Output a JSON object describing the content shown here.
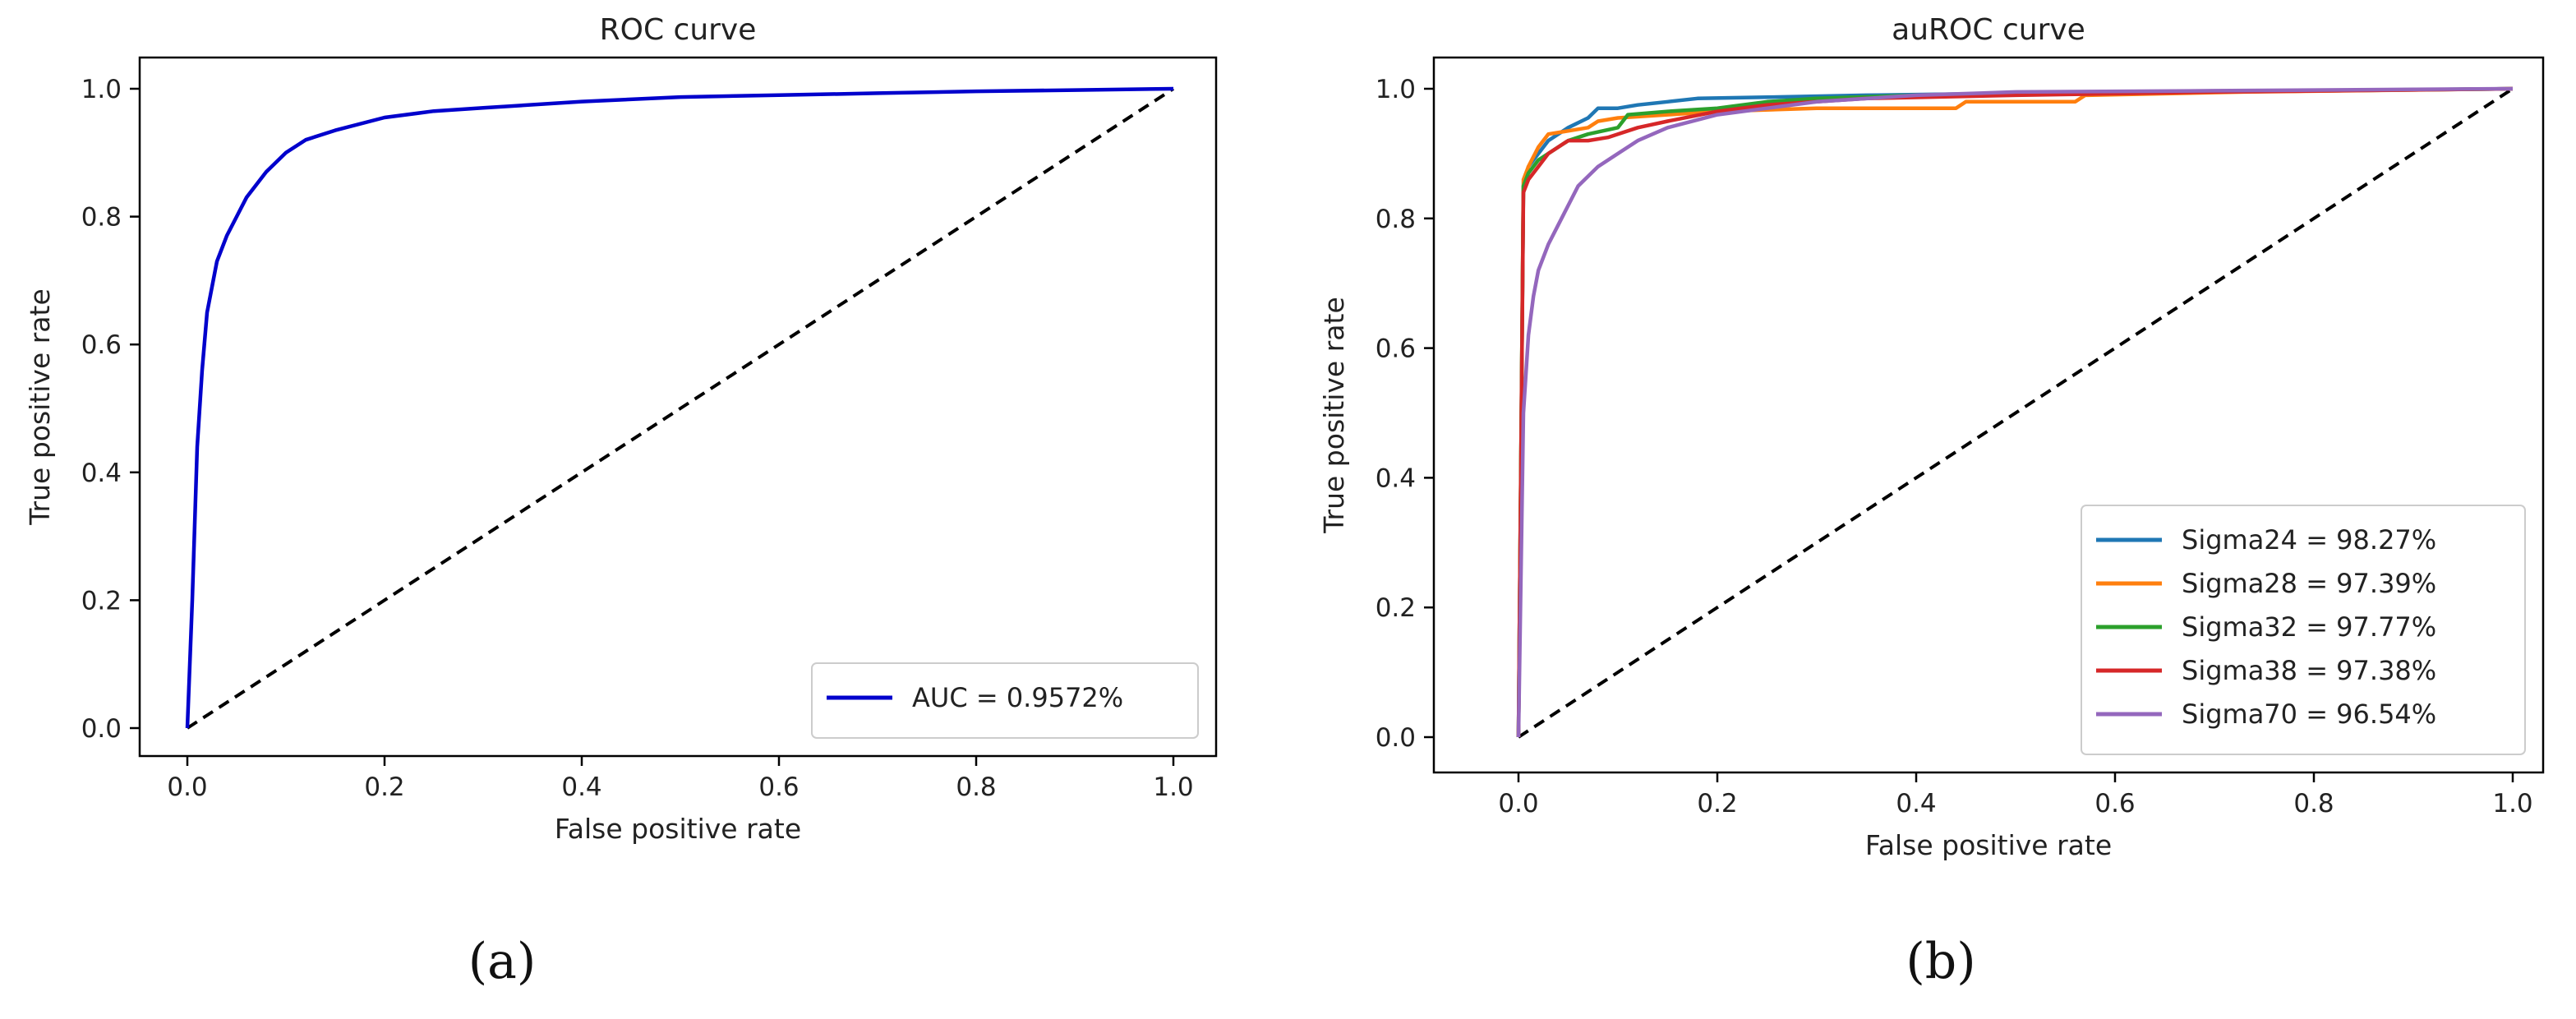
{
  "chart_data": [
    {
      "type": "line",
      "panel_label": "(a)",
      "title": "ROC curve",
      "xlabel": "False positive rate",
      "ylabel": "True positive rate",
      "xlim": [
        0,
        1
      ],
      "ylim": [
        0,
        1
      ],
      "xticks": [
        "0.0",
        "0.2",
        "0.4",
        "0.6",
        "0.8",
        "1.0"
      ],
      "yticks": [
        "0.0",
        "0.2",
        "0.4",
        "0.6",
        "0.8",
        "1.0"
      ],
      "grid": false,
      "legend_position": "bottom-right",
      "series": [
        {
          "name": "AUC = 0.9572%",
          "color": "#0000cc",
          "style": "solid",
          "x": [
            0,
            0.005,
            0.01,
            0.015,
            0.02,
            0.03,
            0.04,
            0.05,
            0.06,
            0.08,
            0.1,
            0.12,
            0.15,
            0.2,
            0.25,
            0.3,
            0.4,
            0.5,
            0.6,
            0.7,
            0.8,
            0.9,
            1.0
          ],
          "y": [
            0,
            0.2,
            0.44,
            0.56,
            0.65,
            0.73,
            0.77,
            0.8,
            0.83,
            0.87,
            0.9,
            0.92,
            0.935,
            0.955,
            0.965,
            0.97,
            0.98,
            0.987,
            0.99,
            0.993,
            0.996,
            0.998,
            1.0
          ]
        },
        {
          "name": "chance",
          "color": "#000000",
          "style": "dashed",
          "show_in_legend": false,
          "x": [
            0,
            1
          ],
          "y": [
            0,
            1
          ]
        }
      ]
    },
    {
      "type": "line",
      "panel_label": "(b)",
      "title": "auROC curve",
      "xlabel": "False positive rate",
      "ylabel": "True positive rate",
      "xlim": [
        0,
        1
      ],
      "ylim": [
        0,
        1
      ],
      "xticks": [
        "0.0",
        "0.2",
        "0.4",
        "0.6",
        "0.8",
        "1.0"
      ],
      "yticks": [
        "0.0",
        "0.2",
        "0.4",
        "0.6",
        "0.8",
        "1.0"
      ],
      "grid": false,
      "legend_position": "bottom-right",
      "series": [
        {
          "name": "Sigma24 = 98.27%",
          "color": "#1f77b4",
          "style": "solid",
          "x": [
            0,
            0.005,
            0.01,
            0.02,
            0.03,
            0.05,
            0.07,
            0.08,
            0.1,
            0.12,
            0.15,
            0.18,
            0.25,
            0.35,
            0.5,
            0.7,
            1.0
          ],
          "y": [
            0,
            0.85,
            0.88,
            0.9,
            0.92,
            0.94,
            0.955,
            0.97,
            0.97,
            0.975,
            0.98,
            0.985,
            0.987,
            0.99,
            0.993,
            0.995,
            1.0
          ]
        },
        {
          "name": "Sigma28 = 97.39%",
          "color": "#ff7f0e",
          "style": "solid",
          "x": [
            0,
            0.005,
            0.01,
            0.02,
            0.03,
            0.05,
            0.07,
            0.08,
            0.1,
            0.15,
            0.2,
            0.3,
            0.44,
            0.45,
            0.56,
            0.57,
            0.73,
            1.0
          ],
          "y": [
            0,
            0.86,
            0.88,
            0.91,
            0.93,
            0.935,
            0.94,
            0.95,
            0.955,
            0.96,
            0.965,
            0.97,
            0.97,
            0.98,
            0.98,
            0.99,
            0.995,
            1.0
          ]
        },
        {
          "name": "Sigma32 = 97.77%",
          "color": "#2ca02c",
          "style": "solid",
          "x": [
            0,
            0.005,
            0.01,
            0.02,
            0.03,
            0.05,
            0.07,
            0.1,
            0.11,
            0.15,
            0.2,
            0.25,
            0.3,
            0.4,
            0.5,
            0.7,
            1.0
          ],
          "y": [
            0,
            0.85,
            0.87,
            0.89,
            0.9,
            0.92,
            0.93,
            0.94,
            0.96,
            0.965,
            0.97,
            0.98,
            0.985,
            0.99,
            0.993,
            0.996,
            1.0
          ]
        },
        {
          "name": "Sigma38 = 97.38%",
          "color": "#d62728",
          "style": "solid",
          "x": [
            0,
            0.005,
            0.01,
            0.02,
            0.03,
            0.05,
            0.07,
            0.09,
            0.1,
            0.12,
            0.15,
            0.2,
            0.25,
            0.35,
            0.5,
            0.7,
            1.0
          ],
          "y": [
            0,
            0.84,
            0.86,
            0.88,
            0.9,
            0.92,
            0.92,
            0.925,
            0.93,
            0.94,
            0.95,
            0.965,
            0.975,
            0.985,
            0.99,
            0.995,
            1.0
          ]
        },
        {
          "name": "Sigma70 = 96.54%",
          "color": "#9467bd",
          "style": "solid",
          "x": [
            0,
            0.005,
            0.01,
            0.015,
            0.02,
            0.03,
            0.04,
            0.05,
            0.06,
            0.08,
            0.1,
            0.12,
            0.15,
            0.2,
            0.25,
            0.3,
            0.4,
            0.5,
            0.7,
            1.0
          ],
          "y": [
            0,
            0.5,
            0.62,
            0.68,
            0.72,
            0.76,
            0.79,
            0.82,
            0.85,
            0.88,
            0.9,
            0.92,
            0.94,
            0.96,
            0.97,
            0.98,
            0.99,
            0.995,
            0.997,
            1.0
          ]
        },
        {
          "name": "chance",
          "color": "#000000",
          "style": "dashed",
          "show_in_legend": false,
          "x": [
            0,
            1
          ],
          "y": [
            0,
            1
          ]
        }
      ]
    }
  ]
}
